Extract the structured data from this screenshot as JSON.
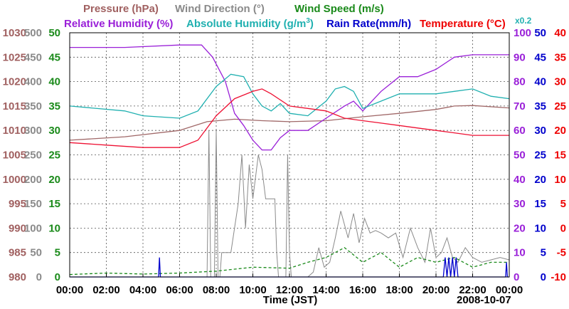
{
  "chart_data": {
    "type": "line",
    "date_label": "2008-10-07",
    "xlabel": "Time (JST)",
    "x_ticks": [
      "00:00",
      "02:00",
      "04:00",
      "06:00",
      "08:00",
      "10:00",
      "12:00",
      "14:00",
      "16:00",
      "18:00",
      "20:00",
      "22:00",
      "00:00"
    ],
    "legend": {
      "pressure": "Pressure (hPa)",
      "wind_dir": "Wind Direction (°)",
      "wind_speed": "Wind Speed (m/s)",
      "rel_hum": "Relative Humidity (%)",
      "abs_hum": "Absolute Humidity (g/m",
      "abs_hum_sup": "3",
      "abs_hum_close": ")",
      "rain": "Rain Rate(mm/h)",
      "temp": "Temperature (°C)",
      "abs_scale": "x0.2"
    },
    "axes": {
      "pressure": {
        "ticks": [
          "980",
          "985",
          "990",
          "995",
          "1000",
          "1005",
          "1010",
          "1015",
          "1020",
          "1025",
          "1030"
        ],
        "color": "#a06060",
        "range": [
          980,
          1030
        ]
      },
      "wind_dir": {
        "ticks": [
          "0",
          "50",
          "100",
          "150",
          "200",
          "250",
          "300",
          "350",
          "400",
          "450",
          "500"
        ],
        "color": "#8a8a8a",
        "range": [
          0,
          500
        ]
      },
      "wind_speed": {
        "ticks": [
          "0",
          "5",
          "10",
          "15",
          "20",
          "25",
          "30",
          "35",
          "40",
          "45",
          "50"
        ],
        "color": "#1a8a1a",
        "range": [
          0,
          50
        ]
      },
      "rel_hum": {
        "ticks": [
          "0",
          "10",
          "20",
          "30",
          "40",
          "50",
          "60",
          "70",
          "80",
          "90",
          "100"
        ],
        "color": "#9a20d8",
        "range": [
          0,
          100
        ]
      },
      "rain": {
        "ticks": [
          "0",
          "5",
          "10",
          "15",
          "20",
          "25",
          "30",
          "35",
          "40",
          "45",
          "50"
        ],
        "color": "#0000cc",
        "range": [
          0,
          50
        ]
      },
      "temp": {
        "ticks": [
          "-10",
          "-5",
          "0",
          "5",
          "10",
          "15",
          "20",
          "25",
          "30",
          "35",
          "40"
        ],
        "color": "#ee0000",
        "range": [
          -10,
          40
        ]
      }
    },
    "series": [
      {
        "key": "pressure",
        "color": "#a06868",
        "axis": "pressure",
        "points": [
          [
            0,
            1008
          ],
          [
            3,
            1008.7
          ],
          [
            6,
            1010
          ],
          [
            7.5,
            1011.8
          ],
          [
            9,
            1012.3
          ],
          [
            10.5,
            1012
          ],
          [
            12,
            1011.8
          ],
          [
            14,
            1012
          ],
          [
            16,
            1012.8
          ],
          [
            18,
            1013.5
          ],
          [
            20,
            1014.3
          ],
          [
            21,
            1015
          ],
          [
            22,
            1015.1
          ],
          [
            24,
            1014.6
          ]
        ]
      },
      {
        "key": "wind_dir",
        "color": "#8a8a8a",
        "axis": "wind_dir",
        "points": [
          [
            0,
            0
          ],
          [
            7.5,
            0
          ],
          [
            7.6,
            300
          ],
          [
            7.7,
            0
          ],
          [
            7.9,
            0
          ],
          [
            8.0,
            300
          ],
          [
            8.1,
            0
          ],
          [
            8.2,
            0
          ],
          [
            8.3,
            50
          ],
          [
            8.8,
            50
          ],
          [
            9.2,
            150
          ],
          [
            9.4,
            250
          ],
          [
            9.6,
            100
          ],
          [
            9.8,
            230
          ],
          [
            10,
            160
          ],
          [
            10.3,
            250
          ],
          [
            10.5,
            220
          ],
          [
            10.7,
            160
          ],
          [
            11.2,
            160
          ],
          [
            11.3,
            50
          ],
          [
            11.4,
            0
          ],
          [
            11.8,
            0
          ],
          [
            11.9,
            250
          ],
          [
            12.0,
            50
          ],
          [
            12.1,
            0
          ],
          [
            13,
            0
          ],
          [
            13.3,
            10
          ],
          [
            13.6,
            60
          ],
          [
            13.9,
            20
          ],
          [
            14.2,
            30
          ],
          [
            14.5,
            80
          ],
          [
            14.8,
            135
          ],
          [
            15.2,
            80
          ],
          [
            15.5,
            130
          ],
          [
            15.8,
            70
          ],
          [
            16.1,
            120
          ],
          [
            16.4,
            90
          ],
          [
            16.7,
            95
          ],
          [
            17.0,
            90
          ],
          [
            17.4,
            80
          ],
          [
            17.8,
            90
          ],
          [
            18.2,
            40
          ],
          [
            18.6,
            100
          ],
          [
            19.0,
            60
          ],
          [
            19.4,
            30
          ],
          [
            19.7,
            100
          ],
          [
            20.0,
            40
          ],
          [
            20.3,
            50
          ],
          [
            20.6,
            80
          ],
          [
            20.9,
            40
          ],
          [
            21.2,
            30
          ],
          [
            21.6,
            60
          ],
          [
            22.0,
            40
          ],
          [
            22.5,
            30
          ],
          [
            23.0,
            35
          ],
          [
            23.5,
            40
          ],
          [
            24,
            35
          ]
        ]
      },
      {
        "key": "wind_speed",
        "color": "#1a8a1a",
        "axis": "wind_speed",
        "dashed": true,
        "points": [
          [
            0,
            0.5
          ],
          [
            2,
            0.8
          ],
          [
            4,
            0.6
          ],
          [
            6,
            0.8
          ],
          [
            8,
            1.2
          ],
          [
            10,
            2
          ],
          [
            12,
            1.8
          ],
          [
            13,
            3
          ],
          [
            14,
            4
          ],
          [
            15,
            6
          ],
          [
            16,
            3
          ],
          [
            17,
            5
          ],
          [
            18,
            2
          ],
          [
            19,
            4
          ],
          [
            20,
            3
          ],
          [
            21,
            4
          ],
          [
            22,
            2
          ],
          [
            23,
            3
          ],
          [
            24,
            3
          ]
        ]
      },
      {
        "key": "rel_hum",
        "color": "#9a20d8",
        "axis": "rel_hum",
        "points": [
          [
            0,
            94
          ],
          [
            3,
            94
          ],
          [
            6,
            95
          ],
          [
            7.2,
            95
          ],
          [
            7.8,
            90
          ],
          [
            8.5,
            80
          ],
          [
            9.0,
            67
          ],
          [
            9.5,
            62
          ],
          [
            10.0,
            56
          ],
          [
            10.5,
            52
          ],
          [
            11,
            52
          ],
          [
            11.5,
            57
          ],
          [
            12,
            60
          ],
          [
            13,
            60
          ],
          [
            14,
            65
          ],
          [
            15,
            70
          ],
          [
            15.5,
            72
          ],
          [
            16,
            68
          ],
          [
            17,
            76
          ],
          [
            18,
            82
          ],
          [
            19,
            82
          ],
          [
            20,
            85
          ],
          [
            21,
            90
          ],
          [
            22,
            91
          ],
          [
            24,
            91
          ]
        ]
      },
      {
        "key": "abs_hum",
        "color": "#20b0b0",
        "axis": "rel_hum",
        "points": [
          [
            0,
            70
          ],
          [
            3,
            68
          ],
          [
            4,
            66
          ],
          [
            6,
            65
          ],
          [
            7,
            68
          ],
          [
            8,
            78
          ],
          [
            8.8,
            83
          ],
          [
            9.5,
            82
          ],
          [
            10,
            75
          ],
          [
            10.5,
            70
          ],
          [
            11,
            68
          ],
          [
            11.5,
            71
          ],
          [
            12,
            67
          ],
          [
            13,
            66
          ],
          [
            14,
            72
          ],
          [
            14.5,
            77
          ],
          [
            15,
            78
          ],
          [
            15.5,
            76
          ],
          [
            16,
            69
          ],
          [
            17,
            72
          ],
          [
            18,
            75
          ],
          [
            19,
            75
          ],
          [
            20,
            75
          ],
          [
            21,
            76
          ],
          [
            22,
            77
          ],
          [
            23,
            74
          ],
          [
            24,
            73
          ]
        ]
      },
      {
        "key": "rain",
        "color": "#0000cc",
        "axis": "rain",
        "points": [
          [
            0,
            0
          ],
          [
            4.85,
            0
          ],
          [
            4.9,
            4
          ],
          [
            4.95,
            0
          ],
          [
            20.4,
            0
          ],
          [
            20.5,
            4
          ],
          [
            20.6,
            0
          ],
          [
            20.7,
            4
          ],
          [
            20.8,
            0
          ],
          [
            20.9,
            4
          ],
          [
            21.0,
            0
          ],
          [
            21.1,
            4
          ],
          [
            21.2,
            0
          ],
          [
            23.8,
            0
          ],
          [
            23.85,
            3
          ],
          [
            23.9,
            0
          ],
          [
            24,
            0
          ]
        ]
      },
      {
        "key": "temp",
        "color": "#ee1133",
        "axis": "temp",
        "points": [
          [
            0,
            17.5
          ],
          [
            2,
            17
          ],
          [
            4,
            16.5
          ],
          [
            6,
            16.5
          ],
          [
            7,
            18
          ],
          [
            8,
            23
          ],
          [
            9,
            26.5
          ],
          [
            10,
            28
          ],
          [
            10.5,
            28.5
          ],
          [
            11,
            27.5
          ],
          [
            12,
            25
          ],
          [
            13,
            24.5
          ],
          [
            14,
            24
          ],
          [
            15,
            22.5
          ],
          [
            16,
            22
          ],
          [
            17,
            21.5
          ],
          [
            18,
            21
          ],
          [
            19,
            20.5
          ],
          [
            20,
            20
          ],
          [
            21,
            19.5
          ],
          [
            22,
            19
          ],
          [
            23,
            19
          ],
          [
            24,
            19
          ]
        ]
      }
    ]
  }
}
